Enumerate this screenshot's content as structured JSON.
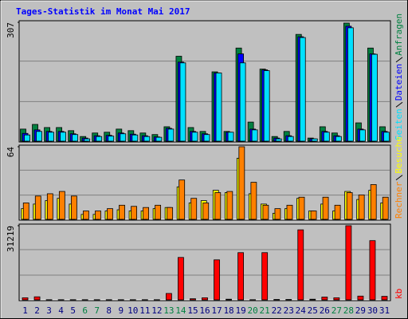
{
  "chart_data": [
    {
      "type": "bar",
      "title": "Tages-Statistik im Monat Mai 2017",
      "title_color": "#0000ff",
      "ylim": [
        0,
        307
      ],
      "yticks": [
        307
      ],
      "series": [
        {
          "name": "Anfragen",
          "color": "#008040",
          "values": [
            33,
            45,
            37,
            37,
            29,
            14,
            23,
            25,
            33,
            29,
            23,
            19,
            39,
            220,
            37,
            27,
            180,
            27,
            241,
            51,
            187,
            14,
            27,
            276,
            10,
            39,
            23,
            305,
            49,
            241,
            39
          ]
        },
        {
          "name": "Dateien",
          "color": "#0000ff",
          "values": [
            22,
            31,
            27,
            27,
            21,
            10,
            16,
            17,
            23,
            20,
            16,
            13,
            35,
            205,
            27,
            21,
            177,
            25,
            226,
            33,
            185,
            10,
            16,
            270,
            8,
            27,
            16,
            297,
            33,
            226,
            27
          ]
        },
        {
          "name": "Seiten",
          "color": "#00e0ff",
          "values": [
            18,
            27,
            25,
            25,
            19,
            8,
            14,
            15,
            21,
            18,
            14,
            12,
            33,
            203,
            25,
            19,
            177,
            25,
            203,
            31,
            183,
            8,
            14,
            268,
            8,
            25,
            14,
            293,
            31,
            225,
            25
          ]
        }
      ]
    },
    {
      "type": "bar",
      "ylim": [
        0,
        64
      ],
      "yticks": [
        64
      ],
      "series": [
        {
          "name": "Besuche",
          "color": "#ffff00",
          "values": [
            10,
            14,
            17,
            19,
            14,
            5,
            5,
            8,
            9,
            8,
            8,
            10,
            11,
            29,
            15,
            17,
            26,
            24,
            54,
            23,
            14,
            6,
            10,
            19,
            8,
            14,
            8,
            25,
            18,
            26,
            15
          ]
        },
        {
          "name": "Rechner",
          "color": "#ff8000",
          "values": [
            15,
            21,
            23,
            25,
            21,
            8,
            8,
            10,
            13,
            12,
            11,
            13,
            11,
            35,
            19,
            15,
            24,
            25,
            64,
            33,
            13,
            10,
            13,
            20,
            8,
            20,
            13,
            24,
            22,
            31,
            20
          ]
        }
      ]
    },
    {
      "type": "bar",
      "ylim": [
        0,
        31219
      ],
      "yticks": [
        31219
      ],
      "categories": [
        "1",
        "2",
        "3",
        "4",
        "5",
        "6",
        "7",
        "8",
        "9",
        "10",
        "11",
        "12",
        "13",
        "14",
        "15",
        "16",
        "17",
        "18",
        "19",
        "20",
        "21",
        "22",
        "23",
        "24",
        "25",
        "26",
        "27",
        "28",
        "29",
        "30",
        "31"
      ],
      "category_colors": [
        "#000080",
        "#000080",
        "#000080",
        "#000080",
        "#000080",
        "#008040",
        "#008040",
        "#000080",
        "#000080",
        "#000080",
        "#000080",
        "#000080",
        "#008040",
        "#008040",
        "#000080",
        "#000080",
        "#000080",
        "#000080",
        "#000080",
        "#008040",
        "#008040",
        "#000080",
        "#000080",
        "#000080",
        "#000080",
        "#000080",
        "#008040",
        "#008040",
        "#000080",
        "#000080",
        "#000080"
      ],
      "series": [
        {
          "name": "kb",
          "color": "#ff0000",
          "values": [
            1200,
            1600,
            400,
            400,
            400,
            400,
            400,
            400,
            400,
            400,
            400,
            400,
            3000,
            18000,
            800,
            1200,
            17000,
            600,
            20000,
            400,
            20000,
            500,
            500,
            29500,
            600,
            1500,
            1200,
            31219,
            1900,
            25000,
            1800
          ]
        }
      ]
    }
  ]
}
